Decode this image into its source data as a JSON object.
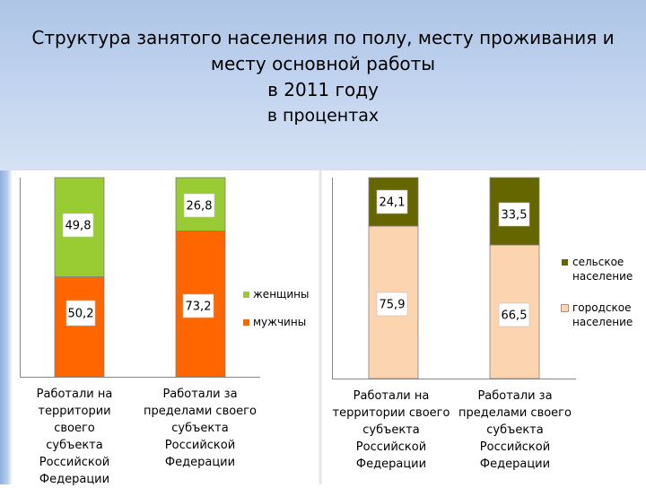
{
  "header": {
    "title_line1": "Структура занятого населения по полу, месту проживания и",
    "title_line2": "месту основной работы",
    "title_line3": "в 2011 году",
    "subtitle": "в процентах"
  },
  "chart_data": [
    {
      "type": "bar",
      "stacked": true,
      "categories": [
        "Работали на территории своего субъекта Российской Федерации",
        "Работали за пределами своего субъекта Российской Федерации"
      ],
      "series": [
        {
          "name": "мужчины",
          "values": [
            50.2,
            73.2
          ],
          "labels": [
            "50,2",
            "73,2"
          ],
          "color": "#ff6600"
        },
        {
          "name": "женщины",
          "values": [
            49.8,
            26.8
          ],
          "labels": [
            "49,8",
            "26,8"
          ],
          "color": "#99cc33"
        }
      ],
      "ylim": [
        0,
        100
      ],
      "legend": [
        "женщины",
        "мужчины"
      ],
      "legend_position": "right"
    },
    {
      "type": "bar",
      "stacked": true,
      "categories": [
        "Работали на территории своего субъекта Российской Федерации",
        "Работали за пределами своего субъекта Российской Федерации"
      ],
      "series": [
        {
          "name": "городское население",
          "values": [
            75.9,
            66.5
          ],
          "labels": [
            "75,9",
            "66,5"
          ],
          "color": "#fcd5b0"
        },
        {
          "name": "сельское население",
          "values": [
            24.1,
            33.5
          ],
          "labels": [
            "24,1",
            "33,5"
          ],
          "color": "#666600"
        }
      ],
      "ylim": [
        0,
        100
      ],
      "legend": [
        "сельское население",
        "городское население"
      ],
      "legend_position": "right"
    }
  ],
  "category_lines": [
    [
      "Работали на",
      "территории своего",
      "субъекта",
      "Российской",
      "Федерации"
    ],
    [
      "Работали за",
      "пределами своего",
      "субъекта",
      "Российской",
      "Федерации"
    ]
  ]
}
